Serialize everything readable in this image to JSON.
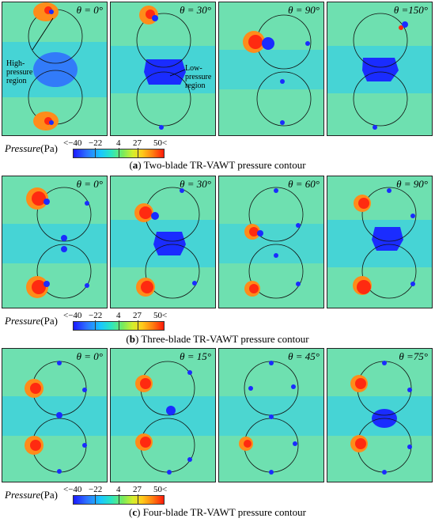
{
  "figure": {
    "rows": [
      {
        "caption_label": "a",
        "caption_text": "Two-blade TR-VAWT pressure contour",
        "angles": [
          "θ = 0°",
          "θ = 30°",
          "θ = 90°",
          "θ =150°"
        ]
      },
      {
        "caption_label": "b",
        "caption_text": "Three-blade TR-VAWT pressure contour",
        "angles": [
          "θ = 0°",
          "θ = 30°",
          "θ = 60°",
          "θ = 90°"
        ]
      },
      {
        "caption_label": "c",
        "caption_text": "Four-blade TR-VAWT pressure contour",
        "angles": [
          "θ = 0°",
          "θ = 15°",
          "θ = 45°",
          "θ =75°"
        ]
      }
    ],
    "legend": {
      "title_italic": "Pressure",
      "title_unit": "(Pa)",
      "low": "<−40",
      "ticks": [
        "−22",
        "4",
        "27"
      ],
      "high": "50<"
    },
    "annotations": {
      "high_pressure": "High-\npressure\nregion",
      "low_pressure": "Low-\npressure\nregion"
    },
    "colors": {
      "background_field": "#6ee0b0",
      "high_pressure": "#ff2a10",
      "low_pressure": "#1a2cff",
      "mid_cyan": "#2fd0e8"
    }
  }
}
